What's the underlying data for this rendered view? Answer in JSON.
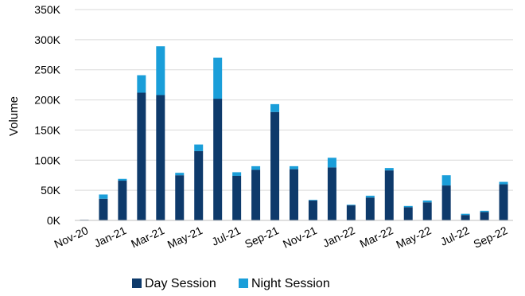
{
  "chart_data": {
    "type": "bar",
    "stacked": true,
    "title": "",
    "xlabel": "",
    "ylabel": "Volume",
    "ylim": [
      0,
      350000
    ],
    "y_ticks": [
      0,
      50000,
      100000,
      150000,
      200000,
      250000,
      300000,
      350000
    ],
    "y_tick_labels": [
      "0K",
      "50K",
      "100K",
      "150K",
      "200K",
      "250K",
      "300K",
      "350K"
    ],
    "grid": true,
    "legend_position": "bottom",
    "categories": [
      "Nov-20",
      "Dec-20",
      "Jan-21",
      "Feb-21",
      "Mar-21",
      "Apr-21",
      "May-21",
      "Jun-21",
      "Jul-21",
      "Aug-21",
      "Sep-21",
      "Oct-21",
      "Nov-21",
      "Dec-21",
      "Jan-22",
      "Feb-22",
      "Mar-22",
      "Apr-22",
      "May-22",
      "Jun-22",
      "Jul-22",
      "Aug-22",
      "Sep-22"
    ],
    "x_tick_labels": [
      "Nov-20",
      "Jan-21",
      "Mar-21",
      "May-21",
      "Jul-21",
      "Sep-21",
      "Nov-21",
      "Jan-22",
      "Mar-22",
      "May-22",
      "Jul-22",
      "Sep-22"
    ],
    "series": [
      {
        "name": "Day Session",
        "color": "#0e3a6b",
        "values": [
          1000,
          36000,
          66000,
          212000,
          208000,
          75000,
          115000,
          202000,
          74000,
          84000,
          180000,
          85000,
          33000,
          88000,
          25000,
          38000,
          83000,
          22000,
          30000,
          58000,
          9000,
          14000,
          60000
        ]
      },
      {
        "name": "Night Session",
        "color": "#1a9ed9",
        "values": [
          0,
          7000,
          3000,
          29000,
          81000,
          4000,
          11000,
          68000,
          6000,
          6000,
          13000,
          5000,
          1000,
          16000,
          1000,
          3000,
          4000,
          2000,
          3000,
          17000,
          2000,
          2000,
          4000
        ]
      }
    ]
  }
}
